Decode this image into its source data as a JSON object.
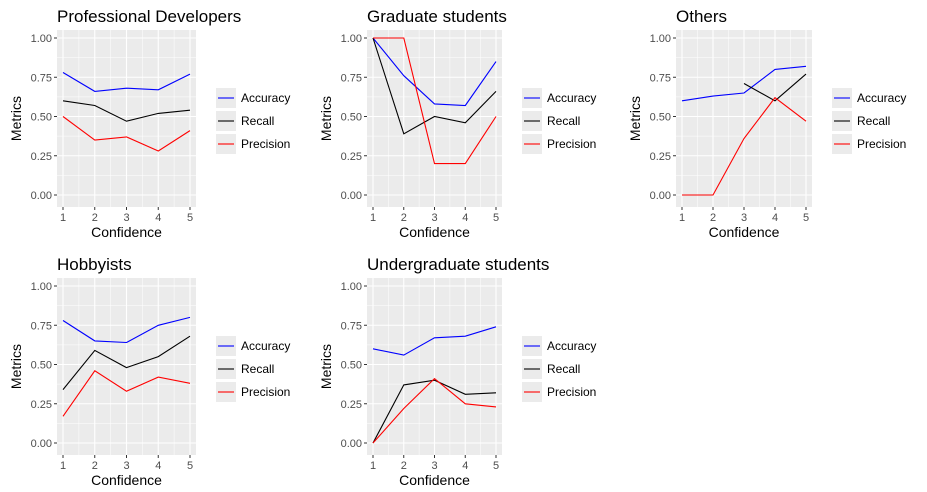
{
  "colors": {
    "Accuracy": "#0000ff",
    "Recall": "#000000",
    "Precision": "#ff0000",
    "panel_bg": "#ebebeb",
    "grid": "#ffffff"
  },
  "chart_data": [
    {
      "type": "line",
      "title": "Professional Developers",
      "xlabel": "Confidence",
      "ylabel": "Metrics",
      "x": [
        1,
        2,
        3,
        4,
        5
      ],
      "ylim": [
        0,
        1
      ],
      "yticks": [
        "0.00",
        "0.25",
        "0.50",
        "0.75",
        "1.00"
      ],
      "xticks": [
        "1",
        "2",
        "3",
        "4",
        "5"
      ],
      "legend": "right",
      "grid": true,
      "series": [
        {
          "name": "Accuracy",
          "values": [
            0.78,
            0.66,
            0.68,
            0.67,
            0.77
          ]
        },
        {
          "name": "Recall",
          "values": [
            0.6,
            0.57,
            0.47,
            0.52,
            0.54
          ]
        },
        {
          "name": "Precision",
          "values": [
            0.5,
            0.35,
            0.37,
            0.28,
            0.41
          ]
        }
      ]
    },
    {
      "type": "line",
      "title": "Graduate students",
      "xlabel": "Confidence",
      "ylabel": "Metrics",
      "x": [
        1,
        2,
        3,
        4,
        5
      ],
      "ylim": [
        0,
        1
      ],
      "yticks": [
        "0.00",
        "0.25",
        "0.50",
        "0.75",
        "1.00"
      ],
      "xticks": [
        "1",
        "2",
        "3",
        "4",
        "5"
      ],
      "legend": "right",
      "grid": true,
      "series": [
        {
          "name": "Accuracy",
          "values": [
            1.0,
            0.76,
            0.58,
            0.57,
            0.85
          ]
        },
        {
          "name": "Recall",
          "values": [
            1.0,
            0.39,
            0.5,
            0.46,
            0.66
          ]
        },
        {
          "name": "Precision",
          "values": [
            1.0,
            1.0,
            0.2,
            0.2,
            0.5
          ]
        }
      ]
    },
    {
      "type": "line",
      "title": "Others",
      "xlabel": "Confidence",
      "ylabel": "Metrics",
      "x": [
        1,
        2,
        3,
        4,
        5
      ],
      "ylim": [
        0,
        1
      ],
      "yticks": [
        "0.00",
        "0.25",
        "0.50",
        "0.75",
        "1.00"
      ],
      "xticks": [
        "1",
        "2",
        "3",
        "4",
        "5"
      ],
      "legend": "right",
      "grid": true,
      "series": [
        {
          "name": "Accuracy",
          "values": [
            0.6,
            0.63,
            0.65,
            0.8,
            0.82
          ]
        },
        {
          "name": "Recall",
          "values": [
            null,
            null,
            0.71,
            0.6,
            0.77
          ]
        },
        {
          "name": "Precision",
          "values": [
            0.0,
            0.0,
            0.36,
            0.62,
            0.47
          ]
        }
      ]
    },
    {
      "type": "line",
      "title": "Hobbyists",
      "xlabel": "Confidence",
      "ylabel": "Metrics",
      "x": [
        1,
        2,
        3,
        4,
        5
      ],
      "ylim": [
        0,
        1
      ],
      "yticks": [
        "0.00",
        "0.25",
        "0.50",
        "0.75",
        "1.00"
      ],
      "xticks": [
        "1",
        "2",
        "3",
        "4",
        "5"
      ],
      "legend": "right",
      "grid": true,
      "series": [
        {
          "name": "Accuracy",
          "values": [
            0.78,
            0.65,
            0.64,
            0.75,
            0.8
          ]
        },
        {
          "name": "Recall",
          "values": [
            0.34,
            0.59,
            0.48,
            0.55,
            0.68
          ]
        },
        {
          "name": "Precision",
          "values": [
            0.17,
            0.46,
            0.33,
            0.42,
            0.38
          ]
        }
      ]
    },
    {
      "type": "line",
      "title": "Undergraduate students",
      "xlabel": "Confidence",
      "ylabel": "Metrics",
      "x": [
        1,
        2,
        3,
        4,
        5
      ],
      "ylim": [
        0,
        1
      ],
      "yticks": [
        "0.00",
        "0.25",
        "0.50",
        "0.75",
        "1.00"
      ],
      "xticks": [
        "1",
        "2",
        "3",
        "4",
        "5"
      ],
      "legend": "right",
      "grid": true,
      "series": [
        {
          "name": "Accuracy",
          "values": [
            0.6,
            0.56,
            0.67,
            0.68,
            0.74
          ]
        },
        {
          "name": "Recall",
          "values": [
            0.0,
            0.37,
            0.4,
            0.31,
            0.32
          ]
        },
        {
          "name": "Precision",
          "values": [
            0.0,
            0.22,
            0.41,
            0.25,
            0.23
          ]
        }
      ]
    }
  ]
}
